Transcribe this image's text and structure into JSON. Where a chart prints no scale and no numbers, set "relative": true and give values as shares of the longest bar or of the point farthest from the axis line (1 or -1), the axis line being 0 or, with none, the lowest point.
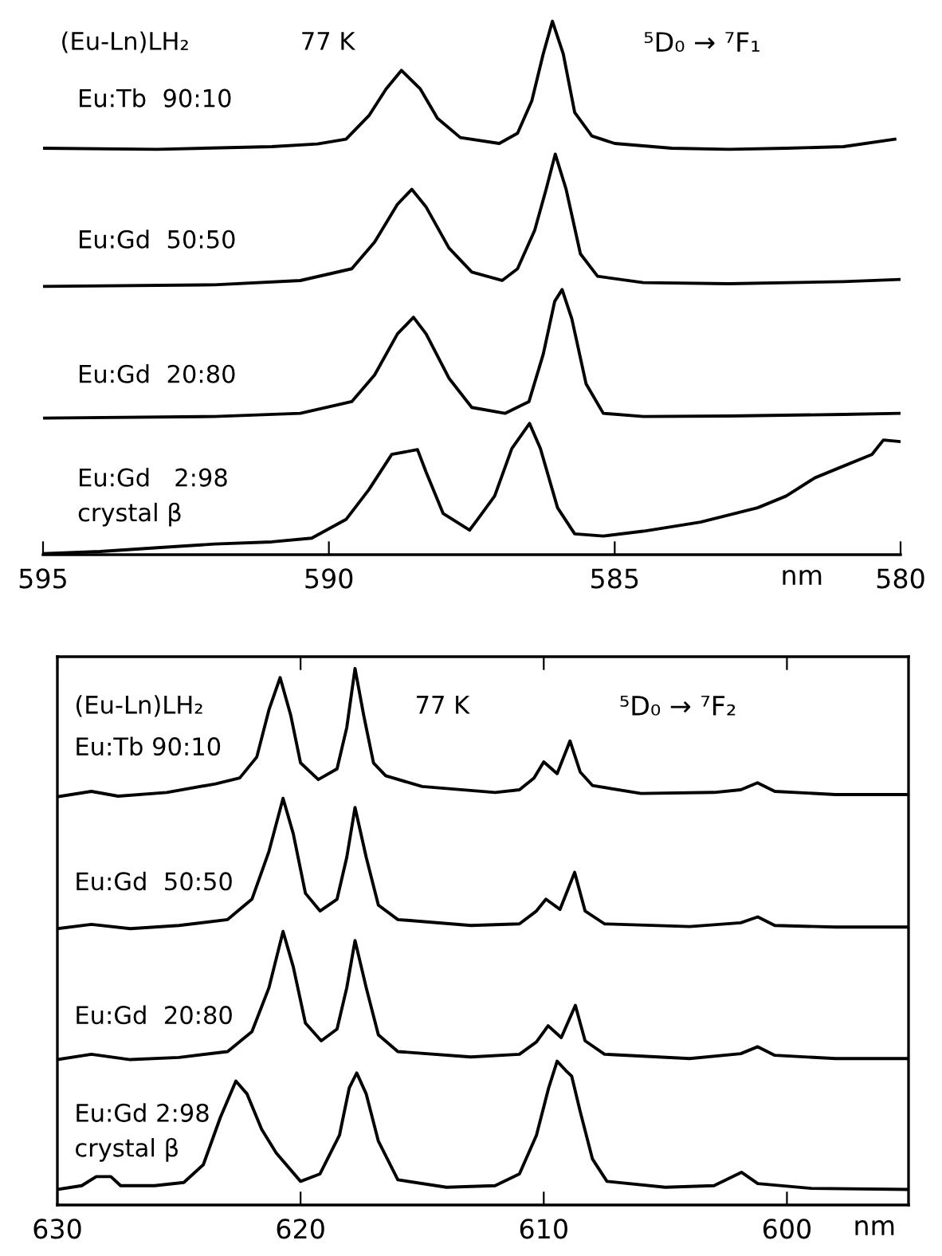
{
  "chart_data": [
    {
      "type": "line",
      "relative": true,
      "xlabel": "nm",
      "xlim": [
        595,
        580
      ],
      "xticks": [
        595,
        590,
        585,
        580
      ],
      "line_style": "solid",
      "annotations": [
        "(Eu-Ln)LH₂",
        "77 K",
        "⁵D₀ → ⁷F₁"
      ],
      "series": [
        {
          "name": "Eu:Tb  90:10",
          "color": "#000000",
          "x": [
            595,
            593,
            591,
            590.2,
            589.7,
            589.3,
            589.0,
            588.73,
            588.4,
            588.1,
            587.7,
            587.02,
            586.7,
            586.45,
            586.25,
            586.09,
            585.9,
            585.7,
            585.4,
            585,
            584,
            583,
            582,
            581,
            580.1
          ],
          "values": [
            0.762,
            0.76,
            0.765,
            0.77,
            0.779,
            0.823,
            0.873,
            0.908,
            0.873,
            0.818,
            0.782,
            0.771,
            0.79,
            0.851,
            0.939,
            1.0,
            0.939,
            0.829,
            0.785,
            0.771,
            0.762,
            0.76,
            0.762,
            0.765,
            0.779
          ]
        },
        {
          "name": "Eu:Gd  50:50",
          "color": "#000000",
          "x": [
            595,
            592,
            590.5,
            589.6,
            589.2,
            588.8,
            588.55,
            588.3,
            587.9,
            587.5,
            586.97,
            586.7,
            586.4,
            586.2,
            586.04,
            585.85,
            585.6,
            585.3,
            584.5,
            583,
            581,
            580
          ],
          "values": [
            0.503,
            0.506,
            0.514,
            0.536,
            0.586,
            0.657,
            0.685,
            0.652,
            0.575,
            0.53,
            0.514,
            0.536,
            0.608,
            0.685,
            0.751,
            0.685,
            0.564,
            0.522,
            0.51,
            0.508,
            0.512,
            0.516
          ]
        },
        {
          "name": "Eu:Gd  20:80",
          "color": "#000000",
          "x": [
            595,
            592,
            590.5,
            589.6,
            589.2,
            588.8,
            588.52,
            588.3,
            587.9,
            587.5,
            586.92,
            586.5,
            586.25,
            586.05,
            585.92,
            585.75,
            585.5,
            585.2,
            584.5,
            583,
            581,
            580
          ],
          "values": [
            0.256,
            0.259,
            0.265,
            0.287,
            0.337,
            0.414,
            0.445,
            0.414,
            0.331,
            0.276,
            0.265,
            0.287,
            0.376,
            0.475,
            0.497,
            0.442,
            0.32,
            0.265,
            0.259,
            0.26,
            0.263,
            0.265
          ]
        },
        {
          "name": "Eu:Gd   2:98\ncrystal β",
          "color": "#000000",
          "x": [
            595,
            594,
            593,
            592,
            591,
            590.3,
            589.7,
            589.3,
            588.9,
            588.45,
            588.3,
            588.0,
            587.54,
            587.4,
            587.1,
            586.8,
            586.49,
            586.3,
            586.0,
            585.7,
            585.2,
            584.5,
            583.5,
            582.5,
            582,
            581.5,
            581,
            580.5,
            580.3,
            580
          ],
          "values": [
            0.002,
            0.006,
            0.013,
            0.02,
            0.024,
            0.031,
            0.066,
            0.122,
            0.188,
            0.197,
            0.155,
            0.077,
            0.046,
            0.066,
            0.11,
            0.199,
            0.246,
            0.199,
            0.088,
            0.039,
            0.035,
            0.044,
            0.061,
            0.088,
            0.11,
            0.144,
            0.166,
            0.188,
            0.215,
            0.212
          ]
        }
      ]
    },
    {
      "type": "line",
      "relative": true,
      "xlabel": "nm",
      "xlim": [
        630,
        595
      ],
      "xticks": [
        630,
        620,
        610,
        600
      ],
      "line_style": "solid",
      "annotations": [
        "(Eu-Ln)LH₂",
        "77 K",
        "⁵D₀ → ⁷F₂"
      ],
      "series": [
        {
          "name": "Eu:Tb 90:10",
          "color": "#000000",
          "x": [
            630,
            628.6,
            627.5,
            625.5,
            623.5,
            622.5,
            621.8,
            621.3,
            620.84,
            620.4,
            620.0,
            619.27,
            618.5,
            618.1,
            617.76,
            617.4,
            617.0,
            616.5,
            615,
            612,
            611,
            610.4,
            610.0,
            609.45,
            608.92,
            608.5,
            608,
            606,
            603,
            601.9,
            601.21,
            600.5,
            598,
            595
          ],
          "values": [
            0.761,
            0.771,
            0.762,
            0.769,
            0.785,
            0.796,
            0.835,
            0.923,
            0.983,
            0.912,
            0.824,
            0.793,
            0.813,
            0.89,
            1.0,
            0.912,
            0.824,
            0.8,
            0.78,
            0.769,
            0.774,
            0.796,
            0.826,
            0.804,
            0.865,
            0.807,
            0.782,
            0.767,
            0.769,
            0.774,
            0.787,
            0.771,
            0.765,
            0.765
          ]
        },
        {
          "name": "Eu:Gd  50:50",
          "color": "#000000",
          "x": [
            630,
            628.6,
            627,
            625,
            623,
            622,
            621.3,
            620.72,
            620.3,
            619.8,
            619.2,
            618.5,
            618.1,
            617.76,
            617.3,
            616.8,
            616,
            613,
            611,
            610.3,
            609.91,
            609.33,
            608.73,
            608.3,
            607.5,
            604,
            601.9,
            601.2,
            600.5,
            598,
            595
          ],
          "values": [
            0.515,
            0.523,
            0.515,
            0.521,
            0.532,
            0.57,
            0.659,
            0.758,
            0.692,
            0.581,
            0.548,
            0.57,
            0.648,
            0.741,
            0.648,
            0.559,
            0.532,
            0.521,
            0.524,
            0.548,
            0.57,
            0.551,
            0.62,
            0.548,
            0.524,
            0.519,
            0.526,
            0.537,
            0.521,
            0.518,
            0.518
          ]
        },
        {
          "name": "Eu:Gd  20:80",
          "color": "#000000",
          "x": [
            630,
            628.6,
            627,
            625,
            623,
            622,
            621.3,
            620.72,
            620.3,
            619.8,
            619.15,
            618.5,
            618.1,
            617.76,
            617.3,
            616.8,
            616,
            613,
            611,
            610.3,
            609.82,
            609.28,
            608.7,
            608.3,
            607.5,
            604,
            601.9,
            601.2,
            600.5,
            598,
            595
          ],
          "values": [
            0.271,
            0.281,
            0.271,
            0.275,
            0.286,
            0.323,
            0.405,
            0.51,
            0.444,
            0.339,
            0.306,
            0.328,
            0.405,
            0.493,
            0.405,
            0.317,
            0.286,
            0.276,
            0.281,
            0.304,
            0.334,
            0.312,
            0.372,
            0.306,
            0.281,
            0.273,
            0.282,
            0.295,
            0.279,
            0.273,
            0.273
          ]
        },
        {
          "name": "Eu:Gd 2:98\ncrystal β",
          "color": "#000000",
          "x": [
            630,
            629,
            628.4,
            627.8,
            627.4,
            626,
            624.8,
            624,
            623.3,
            622.66,
            622.2,
            621.6,
            621,
            620.0,
            619.2,
            618.4,
            618.0,
            617.69,
            617.3,
            616.8,
            616,
            614,
            612,
            611,
            610.3,
            609.8,
            609.45,
            609.1,
            608.85,
            608.5,
            608,
            607.4,
            605,
            603,
            601.87,
            601.2,
            599,
            595
          ],
          "values": [
            0.029,
            0.036,
            0.053,
            0.053,
            0.036,
            0.036,
            0.042,
            0.075,
            0.163,
            0.231,
            0.207,
            0.141,
            0.097,
            0.044,
            0.058,
            0.13,
            0.218,
            0.246,
            0.207,
            0.119,
            0.047,
            0.033,
            0.036,
            0.058,
            0.13,
            0.218,
            0.268,
            0.251,
            0.24,
            0.174,
            0.086,
            0.044,
            0.033,
            0.036,
            0.061,
            0.04,
            0.031,
            0.029
          ]
        }
      ]
    }
  ]
}
